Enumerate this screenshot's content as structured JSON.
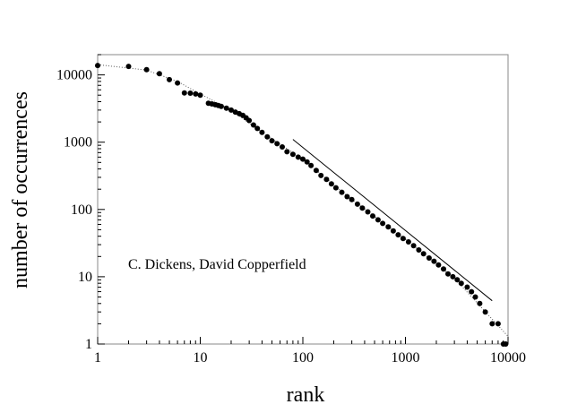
{
  "chart_data": {
    "type": "scatter",
    "xscale": "log",
    "yscale": "log",
    "xlim": [
      1,
      10000
    ],
    "ylim": [
      1,
      20000
    ],
    "grid": false,
    "xlabel": "rank",
    "ylabel": "number of occurrences",
    "annotation": "C. Dickens, David Copperfield",
    "x_ticks": [
      {
        "value": 1,
        "label": "1"
      },
      {
        "value": 10,
        "label": "10"
      },
      {
        "value": 100,
        "label": "100"
      },
      {
        "value": 1000,
        "label": "1000"
      },
      {
        "value": 10000,
        "label": "10000"
      }
    ],
    "y_ticks": [
      {
        "value": 1,
        "label": "1"
      },
      {
        "value": 10,
        "label": "10"
      },
      {
        "value": 100,
        "label": "100"
      },
      {
        "value": 1000,
        "label": "1000"
      },
      {
        "value": 10000,
        "label": "10000"
      }
    ],
    "series": [
      {
        "kind": "points",
        "color": "#000000",
        "points": [
          [
            1,
            13800
          ],
          [
            2,
            13400
          ],
          [
            3,
            12000
          ],
          [
            4,
            10400
          ],
          [
            5,
            8500
          ],
          [
            6,
            7600
          ],
          [
            7,
            5400
          ],
          [
            8,
            5350
          ],
          [
            9,
            5200
          ],
          [
            10,
            5000
          ],
          [
            12,
            3800
          ],
          [
            13,
            3700
          ],
          [
            14,
            3600
          ],
          [
            15,
            3500
          ],
          [
            16,
            3400
          ],
          [
            18,
            3200
          ],
          [
            20,
            3000
          ],
          [
            22,
            2800
          ],
          [
            24,
            2650
          ],
          [
            26,
            2500
          ],
          [
            28,
            2300
          ],
          [
            30,
            2100
          ],
          [
            33,
            1800
          ],
          [
            36,
            1600
          ],
          [
            40,
            1400
          ],
          [
            45,
            1200
          ],
          [
            50,
            1050
          ],
          [
            56,
            950
          ],
          [
            63,
            850
          ],
          [
            70,
            720
          ],
          [
            80,
            660
          ],
          [
            90,
            600
          ],
          [
            100,
            560
          ],
          [
            110,
            510
          ],
          [
            120,
            450
          ],
          [
            135,
            380
          ],
          [
            150,
            320
          ],
          [
            170,
            280
          ],
          [
            190,
            240
          ],
          [
            210,
            210
          ],
          [
            240,
            180
          ],
          [
            270,
            155
          ],
          [
            300,
            140
          ],
          [
            340,
            120
          ],
          [
            380,
            105
          ],
          [
            430,
            92
          ],
          [
            480,
            80
          ],
          [
            540,
            70
          ],
          [
            600,
            62
          ],
          [
            680,
            55
          ],
          [
            760,
            48
          ],
          [
            850,
            42
          ],
          [
            950,
            37
          ],
          [
            1070,
            33
          ],
          [
            1200,
            29
          ],
          [
            1350,
            25
          ],
          [
            1500,
            22
          ],
          [
            1700,
            19
          ],
          [
            1900,
            17
          ],
          [
            2100,
            15
          ],
          [
            2350,
            13
          ],
          [
            2600,
            11
          ],
          [
            2900,
            10
          ],
          [
            3200,
            9
          ],
          [
            3500,
            8
          ],
          [
            4000,
            7
          ],
          [
            4400,
            6
          ],
          [
            4800,
            5
          ],
          [
            5300,
            4
          ],
          [
            6000,
            3
          ],
          [
            7000,
            2
          ],
          [
            8000,
            2
          ],
          [
            9000,
            1
          ],
          [
            9500,
            1
          ]
        ]
      },
      {
        "kind": "dotted-fit",
        "color": "#555555",
        "points": [
          [
            1,
            14200
          ],
          [
            3,
            11800
          ],
          [
            6,
            8000
          ],
          [
            10,
            5200
          ],
          [
            20,
            3000
          ],
          [
            40,
            1400
          ],
          [
            100,
            560
          ],
          [
            300,
            140
          ],
          [
            1000,
            36
          ],
          [
            3000,
            9.5
          ],
          [
            10000,
            1.3
          ]
        ]
      },
      {
        "kind": "reference-line",
        "color": "#000000",
        "points": [
          [
            80,
            1100
          ],
          [
            7000,
            4.4
          ]
        ]
      }
    ]
  }
}
